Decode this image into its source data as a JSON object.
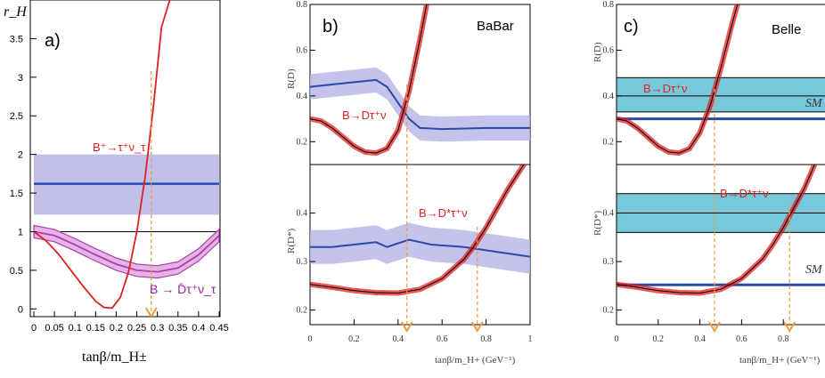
{
  "colors": {
    "red": "#e02020",
    "blue_band": "#b4b4e6",
    "blue_line": "#2a4aa8",
    "magenta": "#b03cb0",
    "magenta_band": "#e4b4e4",
    "cyan_band": "#78c8dc",
    "orange": "#f29a3c"
  },
  "chart_data": [
    {
      "type": "line",
      "panel": "a)",
      "ylabel": "r_H",
      "xlabel": "tanβ/m_H±",
      "xlim": [
        0,
        0.45
      ],
      "ylim": [
        -0.1,
        4.0
      ],
      "xticks": [
        "0",
        "0.05",
        "0.1",
        "0.15",
        "0.2",
        "0.25",
        "0.3",
        "0.35",
        "0.4",
        "0.45"
      ],
      "yticks": [
        "0",
        "0.5",
        "1",
        "1.5",
        "2",
        "2.5",
        "3",
        "3.5"
      ],
      "reference_line": 1,
      "arrow_x": 0.285,
      "measurement_band": {
        "y": 1.62,
        "y_low": 1.22,
        "y_high": 2.0,
        "x_range": [
          0.0,
          0.45
        ]
      },
      "series": [
        {
          "name": "B⁺→τ⁺ν_τ",
          "x": [
            0.0,
            0.03,
            0.06,
            0.09,
            0.12,
            0.15,
            0.17,
            0.19,
            0.21,
            0.23,
            0.25,
            0.27,
            0.29,
            0.31,
            0.33
          ],
          "y": [
            1.0,
            0.88,
            0.71,
            0.5,
            0.29,
            0.1,
            0.02,
            0.01,
            0.15,
            0.48,
            1.0,
            1.7,
            2.6,
            3.65,
            4.0
          ]
        },
        {
          "name": "B → D̄τ⁺ν_τ",
          "x": [
            0.0,
            0.05,
            0.1,
            0.15,
            0.2,
            0.25,
            0.3,
            0.35,
            0.4,
            0.45
          ],
          "y": [
            1.0,
            0.95,
            0.83,
            0.7,
            0.58,
            0.5,
            0.48,
            0.53,
            0.7,
            0.95
          ],
          "band": 0.08
        }
      ]
    },
    {
      "type": "line",
      "panel": "b)",
      "experiment": "BaBar",
      "xlabel": "tanβ/m_H+ (GeV⁻¹)",
      "xlim": [
        0,
        1
      ],
      "xticks": [
        "0",
        "0.2",
        "0.4",
        "0.6",
        "0.8",
        "1"
      ],
      "subplots": [
        {
          "ylabel": "R(D)",
          "ylim": [
            0.1,
            0.8
          ],
          "yticks": [
            "0.2",
            "0.4",
            "0.6",
            "0.8"
          ],
          "label": "B→Dτ⁺ν",
          "arrow_x": 0.44,
          "measurement": {
            "x": [
              0.0,
              0.1,
              0.2,
              0.3,
              0.35,
              0.4,
              0.45,
              0.5,
              0.6,
              0.8,
              1.0
            ],
            "y": [
              0.44,
              0.45,
              0.46,
              0.47,
              0.44,
              0.37,
              0.3,
              0.26,
              0.255,
              0.26,
              0.26
            ],
            "band": 0.055
          },
          "prediction": {
            "x": [
              0.0,
              0.05,
              0.1,
              0.15,
              0.2,
              0.25,
              0.3,
              0.35,
              0.4,
              0.45,
              0.5,
              0.53
            ],
            "y": [
              0.3,
              0.29,
              0.26,
              0.22,
              0.18,
              0.155,
              0.15,
              0.17,
              0.25,
              0.42,
              0.65,
              0.8
            ]
          }
        },
        {
          "ylabel": "R(D*)",
          "ylim": [
            0.17,
            0.5
          ],
          "yticks": [
            "0.2",
            "0.3",
            "0.4"
          ],
          "label": "B→D*τ⁺ν",
          "arrow_x": 0.76,
          "measurement": {
            "x": [
              0.0,
              0.1,
              0.2,
              0.3,
              0.35,
              0.45,
              0.55,
              0.7,
              0.85,
              1.0
            ],
            "y": [
              0.33,
              0.33,
              0.335,
              0.34,
              0.33,
              0.345,
              0.335,
              0.33,
              0.32,
              0.31
            ],
            "band": 0.035
          },
          "prediction": {
            "x": [
              0.0,
              0.1,
              0.2,
              0.3,
              0.4,
              0.5,
              0.6,
              0.7,
              0.75,
              0.8,
              0.9,
              1.0
            ],
            "y": [
              0.253,
              0.247,
              0.24,
              0.236,
              0.235,
              0.243,
              0.265,
              0.305,
              0.335,
              0.37,
              0.45,
              0.52
            ]
          }
        }
      ]
    },
    {
      "type": "line",
      "panel": "c)",
      "experiment": "Belle",
      "xlabel": "tanβ/m_H+ (GeV⁻¹)",
      "xlim": [
        0,
        1
      ],
      "xticks": [
        "0",
        "0.2",
        "0.4",
        "0.6",
        "0.8"
      ],
      "subplots": [
        {
          "ylabel": "R(D)",
          "ylim": [
            0.1,
            0.8
          ],
          "yticks": [
            "0.2",
            "0.4",
            "0.6",
            "0.8"
          ],
          "label": "B→Dτ⁺ν",
          "sm_label": "SM",
          "arrow_x": 0.47,
          "sm_value": 0.3,
          "measurement_band": {
            "y": 0.4,
            "y_low": 0.33,
            "y_high": 0.48
          },
          "prediction": {
            "x": [
              0.0,
              0.05,
              0.1,
              0.15,
              0.2,
              0.25,
              0.3,
              0.35,
              0.4,
              0.45,
              0.5,
              0.55,
              0.58
            ],
            "y": [
              0.3,
              0.29,
              0.26,
              0.22,
              0.18,
              0.155,
              0.15,
              0.17,
              0.24,
              0.36,
              0.52,
              0.7,
              0.8
            ]
          }
        },
        {
          "ylabel": "R(D*)",
          "ylim": [
            0.17,
            0.5
          ],
          "yticks": [
            "0.2",
            "0.3",
            "0.4"
          ],
          "label": "B→D*τ⁺ν",
          "sm_label": "SM",
          "arrow_x": 0.83,
          "sm_value": 0.252,
          "measurement_band": {
            "y": 0.4,
            "y_low": 0.36,
            "y_high": 0.44
          },
          "prediction": {
            "x": [
              0.0,
              0.1,
              0.2,
              0.3,
              0.4,
              0.5,
              0.6,
              0.7,
              0.75,
              0.8,
              0.85,
              0.9,
              0.95
            ],
            "y": [
              0.253,
              0.247,
              0.24,
              0.236,
              0.235,
              0.243,
              0.265,
              0.305,
              0.335,
              0.37,
              0.41,
              0.45,
              0.5
            ]
          }
        }
      ]
    }
  ]
}
